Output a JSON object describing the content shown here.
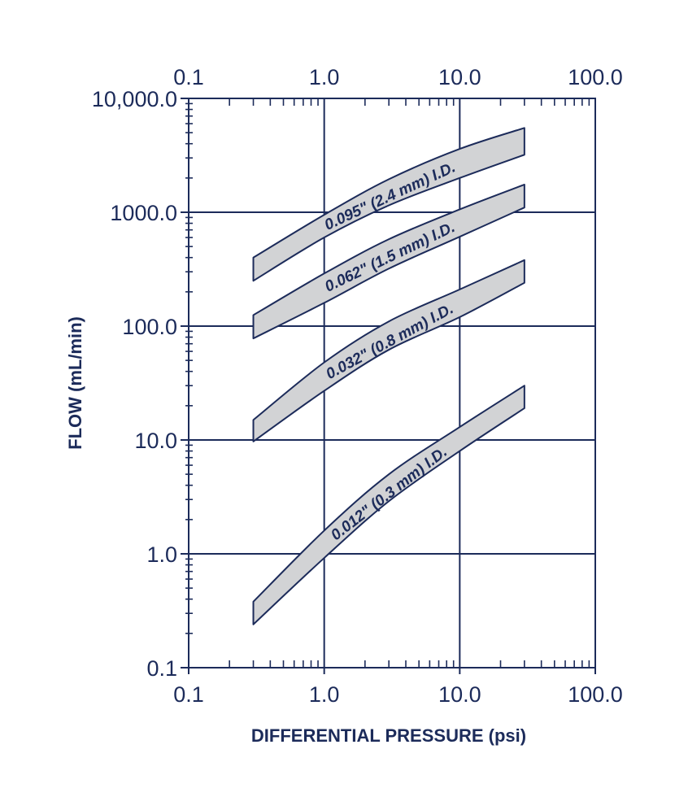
{
  "chart_data": {
    "type": "area",
    "title": "",
    "xlabel": "DIFFERENTIAL PRESSURE (psi)",
    "ylabel": "FLOW (mL/min)",
    "xscale": "log",
    "yscale": "log",
    "xlim": [
      0.1,
      100
    ],
    "ylim": [
      0.1,
      10000
    ],
    "grid": true,
    "x_tick_labels": [
      "0.1",
      "1.0",
      "10.0",
      "100.0"
    ],
    "y_tick_labels": [
      "0.1",
      "1.0",
      "10.0",
      "100.0",
      "1000.0",
      "10,000.0"
    ],
    "colors": {
      "axis": "#1c2b5a",
      "band_fill": "#d2d3d5"
    },
    "series": [
      {
        "label": "0.095\" (2.4 mm) I.D.",
        "x": [
          0.3,
          1.0,
          3.0,
          10.0,
          30.0
        ],
        "y_upper": [
          400,
          950,
          1950,
          3600,
          5500
        ],
        "y_lower": [
          250,
          600,
          1150,
          2000,
          3200
        ]
      },
      {
        "label": "0.062\" (1.5 mm) I.D.",
        "x": [
          0.3,
          1.0,
          3.0,
          10.0,
          30.0
        ],
        "y_upper": [
          125,
          290,
          580,
          1060,
          1750
        ],
        "y_lower": [
          78,
          160,
          320,
          610,
          1100
        ]
      },
      {
        "label": "0.032\" (0.8 mm) I.D.",
        "x": [
          0.3,
          1.0,
          3.0,
          10.0,
          30.0
        ],
        "y_upper": [
          15,
          48,
          110,
          210,
          380
        ],
        "y_lower": [
          9.7,
          27,
          62,
          120,
          240
        ]
      },
      {
        "label": "0.012\" (0.3 mm) I.D.",
        "x": [
          0.3,
          1.0,
          3.0,
          10.0,
          30.0
        ],
        "y_upper": [
          0.38,
          1.6,
          5.0,
          13,
          30
        ],
        "y_lower": [
          0.24,
          0.92,
          2.9,
          8.0,
          19
        ]
      }
    ]
  }
}
